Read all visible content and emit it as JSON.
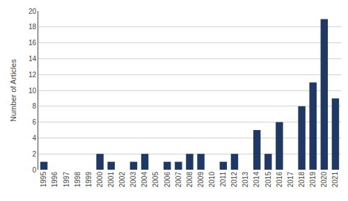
{
  "chart_data": {
    "type": "bar",
    "categories": [
      "1995",
      "1996",
      "1997",
      "1998",
      "1999",
      "2000",
      "2001",
      "2002",
      "2003",
      "2004",
      "2005",
      "2006",
      "2007",
      "2008",
      "2009",
      "2010",
      "2011",
      "2012",
      "2013",
      "2014",
      "2015",
      "2016",
      "2017",
      "2018",
      "2019",
      "2020",
      "2021"
    ],
    "values": [
      1,
      0,
      0,
      0,
      0,
      2,
      1,
      0,
      1,
      2,
      0,
      1,
      1,
      2,
      2,
      0,
      1,
      2,
      0,
      5,
      2,
      6,
      0,
      8,
      11,
      19,
      9
    ],
    "color": "#1F3864",
    "ylabel": "Number of Articles",
    "ylim": [
      0,
      20
    ],
    "yticks": [
      0,
      2,
      4,
      6,
      8,
      10,
      12,
      14,
      16,
      18,
      20
    ],
    "grid": true
  }
}
